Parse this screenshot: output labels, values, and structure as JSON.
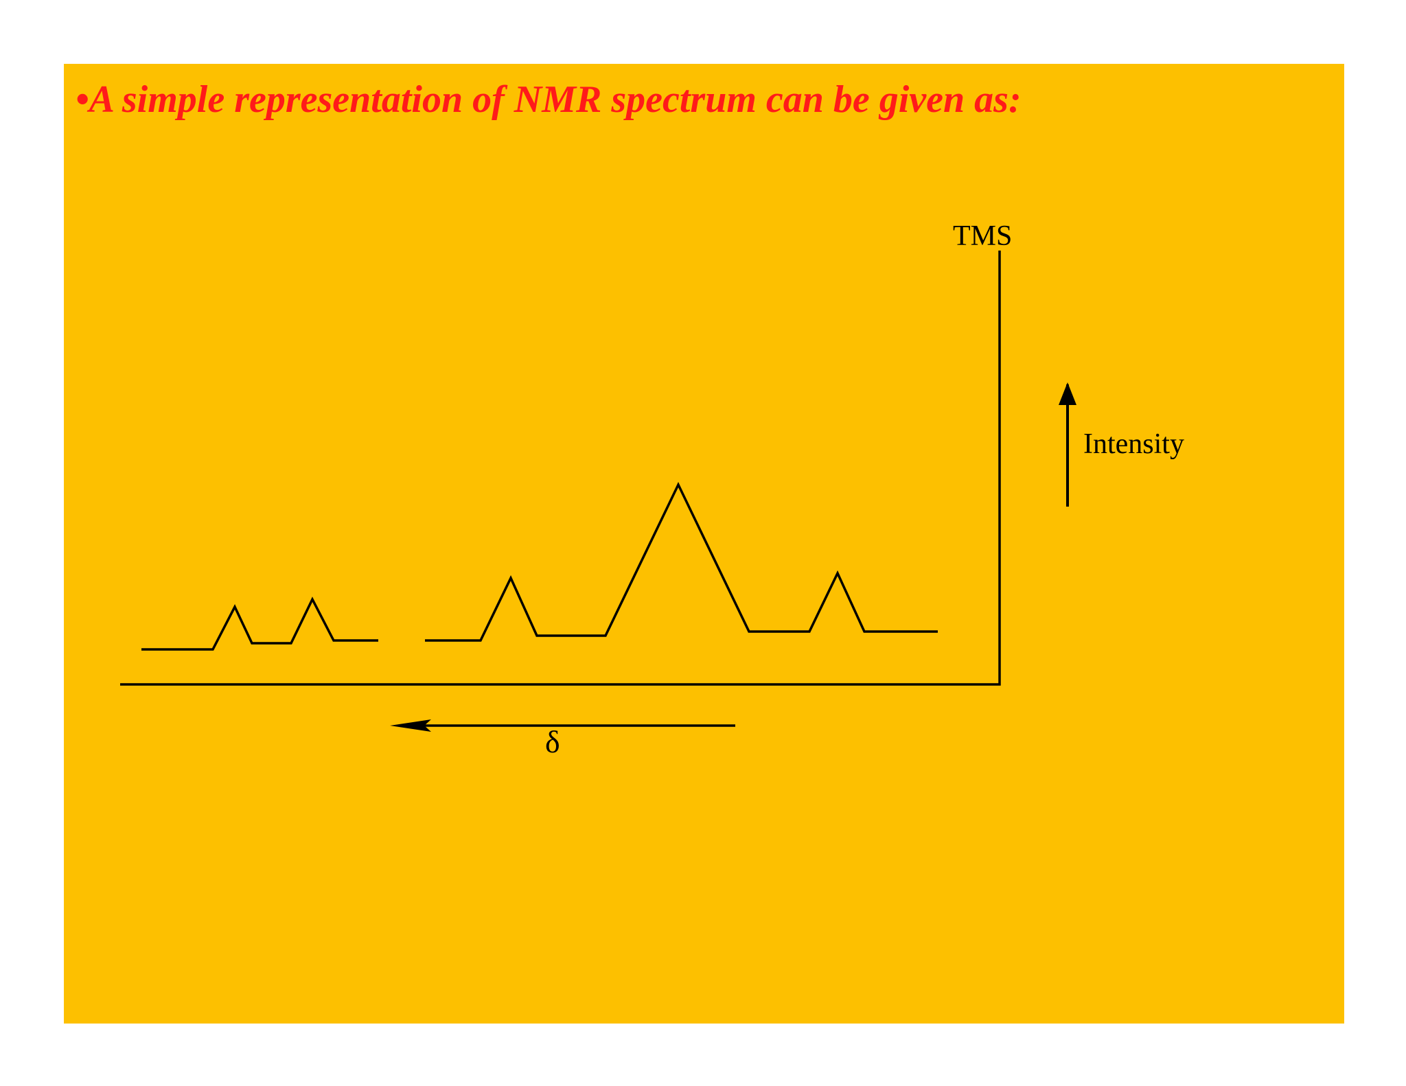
{
  "title": "•A simple representation of NMR spectrum can be given as:",
  "labels": {
    "reference": "TMS",
    "y_axis": "Intensity",
    "x_axis": "δ"
  },
  "colors": {
    "slide_background": "#FDC000",
    "title_text": "#FF1A1A",
    "line": "#000000"
  }
}
